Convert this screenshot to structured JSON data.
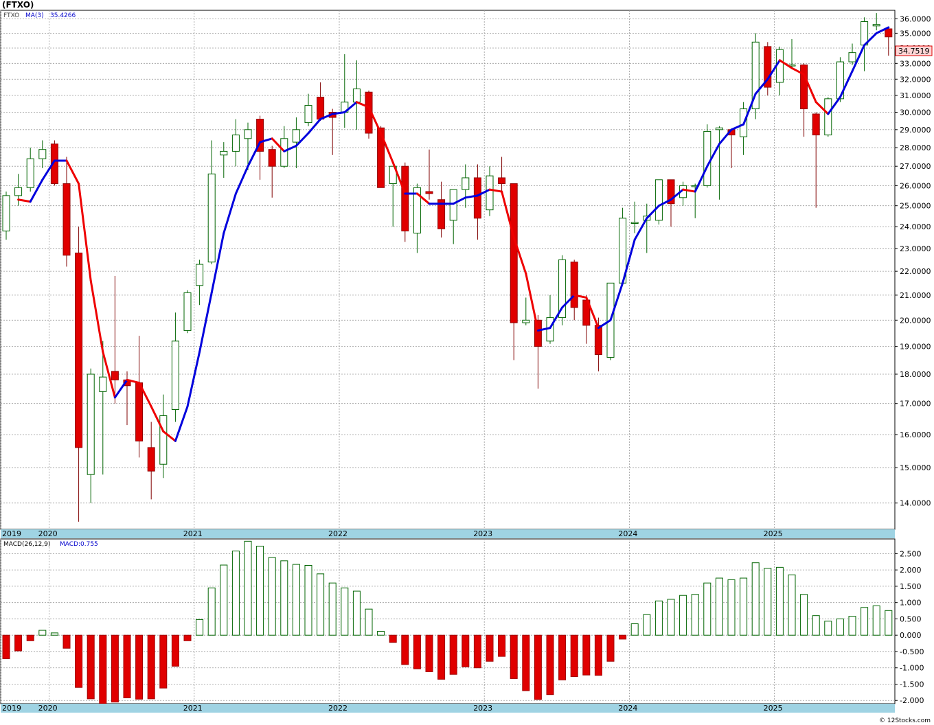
{
  "header": {
    "title": "(FTXO)"
  },
  "price_panel": {
    "symbol_label": "FTXO",
    "ma_label": "MA(3)",
    "ma_value": "35.4266",
    "last_price": "34.7519"
  },
  "macd_panel": {
    "label": "MACD(26,12,9)",
    "value_label": "MACD:0.755"
  },
  "footer": {
    "credit": "© 12Stocks.com"
  },
  "colors": {
    "up_candle": "#006400",
    "down_candle": "#e00000",
    "ma_rising": "#0000dd",
    "ma_falling": "#ee0000",
    "axis_band": "#9fd3e3",
    "macd_positive": "#006400",
    "macd_negative": "#e00000"
  },
  "chart_data": [
    {
      "type": "candlestick",
      "symbol": "FTXO",
      "frequency": "monthly",
      "start": "2019-01",
      "y_ticks": [
        "14.0000",
        "15.0000",
        "16.0000",
        "17.0000",
        "18.0000",
        "19.0000",
        "20.0000",
        "21.0000",
        "22.0000",
        "23.0000",
        "24.0000",
        "25.0000",
        "26.0000",
        "27.0000",
        "28.0000",
        "29.0000",
        "30.0000",
        "31.0000",
        "32.0000",
        "33.0000",
        "34.0000",
        "35.0000",
        "36.0000"
      ],
      "y_range": [
        13.3,
        36.6
      ],
      "scale": "log",
      "x_labels": [
        "2019",
        "2020",
        "2021",
        "2022",
        "2023",
        "2024",
        "2025"
      ],
      "candles": [
        {
          "o": 23.8,
          "h": 25.7,
          "l": 23.4,
          "c": 25.5
        },
        {
          "o": 25.5,
          "h": 26.6,
          "l": 25.0,
          "c": 25.9
        },
        {
          "o": 25.9,
          "h": 28.0,
          "l": 25.7,
          "c": 27.4
        },
        {
          "o": 27.4,
          "h": 28.4,
          "l": 26.9,
          "c": 27.9
        },
        {
          "o": 28.2,
          "h": 28.4,
          "l": 26.0,
          "c": 26.1
        },
        {
          "o": 26.1,
          "h": 27.5,
          "l": 22.2,
          "c": 22.7
        },
        {
          "o": 22.8,
          "h": 24.0,
          "l": 13.5,
          "c": 15.6
        },
        {
          "o": 14.8,
          "h": 18.2,
          "l": 14.0,
          "c": 18.0
        },
        {
          "o": 17.4,
          "h": 19.2,
          "l": 14.8,
          "c": 17.9
        },
        {
          "o": 18.1,
          "h": 21.8,
          "l": 17.0,
          "c": 17.8
        },
        {
          "o": 17.8,
          "h": 18.1,
          "l": 16.3,
          "c": 17.6
        },
        {
          "o": 17.7,
          "h": 19.4,
          "l": 15.3,
          "c": 15.8
        },
        {
          "o": 15.6,
          "h": 16.4,
          "l": 14.1,
          "c": 14.9
        },
        {
          "o": 15.1,
          "h": 17.3,
          "l": 14.7,
          "c": 16.6
        },
        {
          "o": 16.8,
          "h": 20.3,
          "l": 16.4,
          "c": 19.2
        },
        {
          "o": 19.6,
          "h": 21.2,
          "l": 19.5,
          "c": 21.1
        },
        {
          "o": 21.4,
          "h": 22.5,
          "l": 20.6,
          "c": 22.3
        },
        {
          "o": 22.4,
          "h": 28.4,
          "l": 22.3,
          "c": 26.6
        },
        {
          "o": 27.6,
          "h": 28.3,
          "l": 26.4,
          "c": 27.8
        },
        {
          "o": 27.8,
          "h": 29.6,
          "l": 27.0,
          "c": 28.7
        },
        {
          "o": 28.5,
          "h": 29.4,
          "l": 26.8,
          "c": 29.0
        },
        {
          "o": 29.6,
          "h": 29.8,
          "l": 26.3,
          "c": 27.8
        },
        {
          "o": 27.9,
          "h": 28.1,
          "l": 25.4,
          "c": 27.0
        },
        {
          "o": 27.0,
          "h": 29.2,
          "l": 26.9,
          "c": 28.5
        },
        {
          "o": 28.3,
          "h": 29.7,
          "l": 26.9,
          "c": 29.0
        },
        {
          "o": 29.4,
          "h": 31.1,
          "l": 29.2,
          "c": 30.4
        },
        {
          "o": 30.9,
          "h": 31.8,
          "l": 29.5,
          "c": 29.6
        },
        {
          "o": 30.0,
          "h": 30.2,
          "l": 27.6,
          "c": 29.7
        },
        {
          "o": 30.0,
          "h": 33.6,
          "l": 29.1,
          "c": 30.6
        },
        {
          "o": 30.6,
          "h": 33.2,
          "l": 29.0,
          "c": 31.4
        },
        {
          "o": 31.2,
          "h": 31.3,
          "l": 28.5,
          "c": 28.8
        },
        {
          "o": 29.1,
          "h": 29.2,
          "l": 25.9,
          "c": 25.9
        },
        {
          "o": 26.1,
          "h": 27.0,
          "l": 24.0,
          "c": 27.0
        },
        {
          "o": 27.0,
          "h": 27.2,
          "l": 23.3,
          "c": 23.8
        },
        {
          "o": 23.7,
          "h": 26.1,
          "l": 22.8,
          "c": 25.9
        },
        {
          "o": 25.7,
          "h": 27.9,
          "l": 25.3,
          "c": 25.6
        },
        {
          "o": 25.3,
          "h": 26.2,
          "l": 23.5,
          "c": 23.9
        },
        {
          "o": 24.3,
          "h": 25.8,
          "l": 23.2,
          "c": 25.8
        },
        {
          "o": 25.8,
          "h": 27.1,
          "l": 24.9,
          "c": 26.4
        },
        {
          "o": 26.4,
          "h": 27.1,
          "l": 23.4,
          "c": 24.4
        },
        {
          "o": 24.8,
          "h": 27.0,
          "l": 24.5,
          "c": 26.5
        },
        {
          "o": 26.4,
          "h": 27.5,
          "l": 25.6,
          "c": 26.1
        },
        {
          "o": 26.1,
          "h": 26.1,
          "l": 18.5,
          "c": 19.9
        },
        {
          "o": 19.9,
          "h": 20.9,
          "l": 19.8,
          "c": 20.0
        },
        {
          "o": 20.0,
          "h": 20.2,
          "l": 17.5,
          "c": 19.0
        },
        {
          "o": 19.2,
          "h": 21.0,
          "l": 19.1,
          "c": 20.1
        },
        {
          "o": 20.1,
          "h": 22.7,
          "l": 19.8,
          "c": 22.5
        },
        {
          "o": 22.4,
          "h": 22.5,
          "l": 20.0,
          "c": 20.5
        },
        {
          "o": 20.8,
          "h": 21.0,
          "l": 19.1,
          "c": 19.8
        },
        {
          "o": 19.8,
          "h": 20.1,
          "l": 18.1,
          "c": 18.7
        },
        {
          "o": 18.6,
          "h": 21.5,
          "l": 18.5,
          "c": 21.5
        },
        {
          "o": 21.5,
          "h": 24.9,
          "l": 21.4,
          "c": 24.4
        },
        {
          "o": 24.2,
          "h": 25.2,
          "l": 23.7,
          "c": 24.2
        },
        {
          "o": 24.3,
          "h": 25.1,
          "l": 22.8,
          "c": 24.5
        },
        {
          "o": 24.3,
          "h": 26.3,
          "l": 24.1,
          "c": 26.3
        },
        {
          "o": 26.3,
          "h": 26.3,
          "l": 24.0,
          "c": 25.1
        },
        {
          "o": 25.4,
          "h": 26.2,
          "l": 25.0,
          "c": 26.0
        },
        {
          "o": 26.0,
          "h": 26.1,
          "l": 24.4,
          "c": 26.0
        },
        {
          "o": 26.0,
          "h": 29.3,
          "l": 25.9,
          "c": 28.9
        },
        {
          "o": 29.0,
          "h": 29.2,
          "l": 25.3,
          "c": 29.1
        },
        {
          "o": 29.0,
          "h": 29.0,
          "l": 26.9,
          "c": 28.7
        },
        {
          "o": 28.6,
          "h": 30.6,
          "l": 27.6,
          "c": 30.2
        },
        {
          "o": 30.2,
          "h": 35.0,
          "l": 29.6,
          "c": 34.4
        },
        {
          "o": 34.1,
          "h": 34.4,
          "l": 31.0,
          "c": 31.5
        },
        {
          "o": 31.8,
          "h": 34.1,
          "l": 31.0,
          "c": 33.9
        },
        {
          "o": 32.9,
          "h": 34.6,
          "l": 32.7,
          "c": 32.9
        },
        {
          "o": 32.9,
          "h": 33.0,
          "l": 28.6,
          "c": 30.2
        },
        {
          "o": 29.9,
          "h": 30.0,
          "l": 24.9,
          "c": 28.7
        },
        {
          "o": 28.7,
          "h": 30.9,
          "l": 28.6,
          "c": 30.8
        },
        {
          "o": 30.8,
          "h": 33.4,
          "l": 30.6,
          "c": 33.1
        },
        {
          "o": 33.1,
          "h": 34.3,
          "l": 32.9,
          "c": 33.7
        },
        {
          "o": 34.2,
          "h": 36.1,
          "l": 32.5,
          "c": 35.8
        },
        {
          "o": 35.5,
          "h": 36.4,
          "l": 35.2,
          "c": 35.6
        },
        {
          "o": 35.3,
          "h": 35.4,
          "l": 33.5,
          "c": 34.75
        }
      ],
      "ma3": [
        null,
        25.3,
        25.2,
        26.3,
        27.3,
        27.3,
        26.1,
        21.6,
        18.8,
        17.2,
        17.8,
        17.7,
        16.9,
        16.1,
        15.8,
        16.9,
        18.8,
        21.1,
        23.7,
        25.6,
        27.0,
        28.3,
        28.5,
        27.8,
        28.1,
        28.8,
        29.6,
        29.9,
        30.0,
        30.6,
        30.3,
        28.8,
        27.2,
        25.6,
        25.6,
        25.1,
        25.1,
        25.1,
        25.4,
        25.5,
        25.8,
        25.7,
        23.5,
        21.9,
        19.6,
        19.7,
        20.5,
        21.0,
        20.9,
        19.7,
        20.0,
        21.5,
        23.4,
        24.4,
        25.0,
        25.3,
        25.8,
        25.7,
        27.0,
        28.2,
        29.0,
        29.3,
        31.1,
        32.0,
        33.2,
        32.7,
        32.3,
        30.6,
        29.9,
        30.9,
        32.5,
        34.2,
        35.0,
        35.4
      ]
    },
    {
      "type": "bar",
      "indicator": "MACD(26,12,9)",
      "y_ticks": [
        "-2.000",
        "-1.500",
        "-1.000",
        "-0.500",
        "0.000",
        "0.500",
        "1.000",
        "1.500",
        "2.000",
        "2.500"
      ],
      "y_range": [
        -2.1,
        2.95
      ],
      "values": [
        -0.72,
        -0.48,
        -0.17,
        0.15,
        0.07,
        -0.4,
        -1.6,
        -1.95,
        -2.1,
        -2.05,
        -1.92,
        -1.96,
        -1.95,
        -1.62,
        -0.95,
        -0.17,
        0.48,
        1.45,
        2.15,
        2.58,
        2.88,
        2.73,
        2.38,
        2.28,
        2.17,
        2.14,
        1.88,
        1.6,
        1.45,
        1.35,
        0.8,
        0.12,
        -0.22,
        -0.9,
        -1.03,
        -1.12,
        -1.35,
        -1.2,
        -0.97,
        -1.0,
        -0.8,
        -0.65,
        -1.33,
        -1.7,
        -1.97,
        -1.82,
        -1.37,
        -1.27,
        -1.22,
        -1.23,
        -0.8,
        -0.12,
        0.35,
        0.63,
        1.05,
        1.1,
        1.22,
        1.25,
        1.6,
        1.75,
        1.7,
        1.75,
        2.22,
        2.05,
        2.08,
        1.85,
        1.25,
        0.6,
        0.43,
        0.5,
        0.58,
        0.85,
        0.9,
        0.755
      ]
    }
  ]
}
